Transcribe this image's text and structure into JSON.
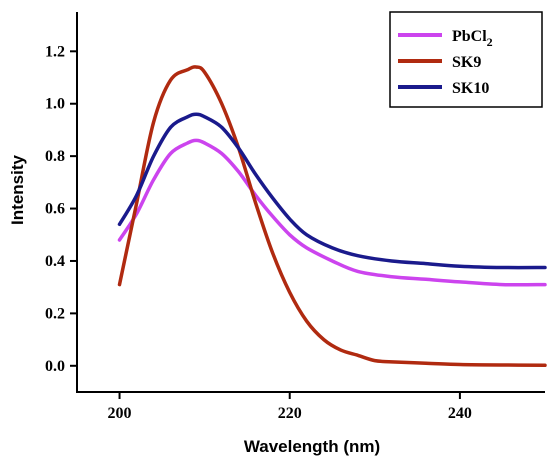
{
  "chart_data": {
    "type": "line",
    "xlabel": "Wavelength (nm)",
    "ylabel": "Intensity",
    "xlim": [
      195,
      250
    ],
    "ylim": [
      -0.1,
      1.35
    ],
    "xticks": [
      200,
      220,
      240
    ],
    "xtick_labels": [
      "200",
      "220",
      "240"
    ],
    "yticks": [
      0.0,
      0.2,
      0.4,
      0.6,
      0.8,
      1.0,
      1.2
    ],
    "ytick_labels": [
      "0.0",
      "0.2",
      "0.4",
      "0.6",
      "0.8",
      "1.0",
      "1.2"
    ],
    "grid": false,
    "legend_position": "top-right",
    "series": [
      {
        "name": "PbCl2",
        "color": "#cc44ee",
        "x": [
          200,
          202,
          204,
          206,
          208,
          209,
          210,
          212,
          214,
          216,
          218,
          220,
          222,
          225,
          228,
          232,
          236,
          240,
          245,
          250
        ],
        "y": [
          0.48,
          0.58,
          0.71,
          0.81,
          0.85,
          0.86,
          0.85,
          0.81,
          0.74,
          0.65,
          0.57,
          0.5,
          0.45,
          0.4,
          0.36,
          0.34,
          0.33,
          0.32,
          0.31,
          0.31
        ]
      },
      {
        "name": "SK9",
        "color": "#b02a10",
        "x": [
          200,
          202,
          204,
          206,
          208,
          209,
          210,
          212,
          214,
          216,
          218,
          220,
          222,
          224,
          226,
          228,
          230,
          232,
          236,
          240,
          245,
          250
        ],
        "y": [
          0.31,
          0.62,
          0.93,
          1.09,
          1.13,
          1.14,
          1.12,
          1.0,
          0.83,
          0.62,
          0.43,
          0.28,
          0.17,
          0.1,
          0.06,
          0.04,
          0.02,
          0.015,
          0.01,
          0.005,
          0.003,
          0.002
        ]
      },
      {
        "name": "SK10",
        "color": "#1a1a8c",
        "x": [
          200,
          202,
          204,
          206,
          208,
          209,
          210,
          212,
          214,
          216,
          218,
          220,
          222,
          225,
          228,
          232,
          236,
          240,
          245,
          250
        ],
        "y": [
          0.54,
          0.65,
          0.8,
          0.91,
          0.95,
          0.96,
          0.95,
          0.91,
          0.83,
          0.73,
          0.64,
          0.56,
          0.5,
          0.45,
          0.42,
          0.4,
          0.39,
          0.38,
          0.375,
          0.375
        ]
      }
    ],
    "legend_entries": [
      {
        "base": "PbCl",
        "sub": "2"
      },
      {
        "base": "SK9",
        "sub": ""
      },
      {
        "base": "SK10",
        "sub": ""
      }
    ]
  }
}
